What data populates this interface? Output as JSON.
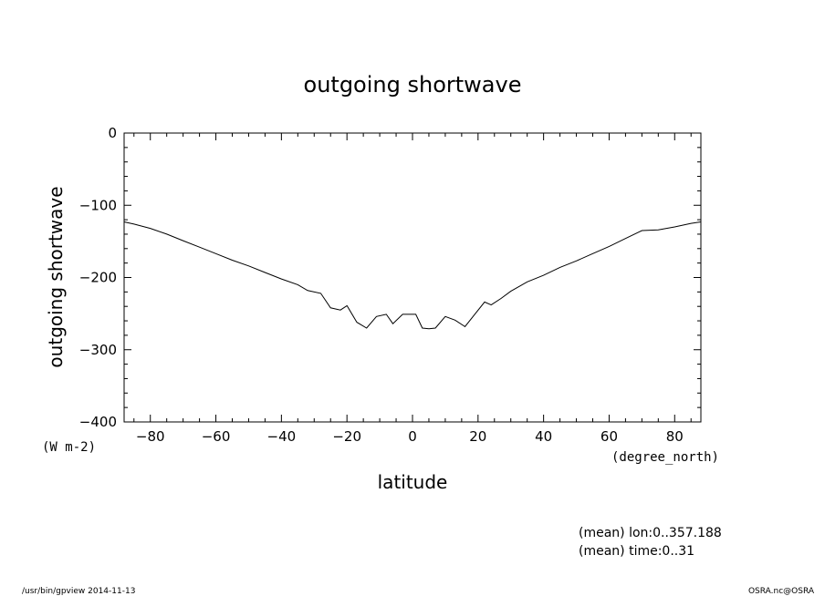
{
  "chart_data": {
    "type": "line",
    "title": "outgoing shortwave",
    "xlabel": "latitude",
    "ylabel": "outgoing shortwave",
    "x_unit": "(degree_north)",
    "y_unit": "(W m-2)",
    "xlim": [
      -88,
      88
    ],
    "ylim": [
      -400,
      0
    ],
    "x_ticks": [
      -80,
      -60,
      -40,
      -20,
      0,
      20,
      40,
      60,
      80
    ],
    "y_ticks": [
      0,
      -100,
      -200,
      -300,
      -400
    ],
    "x_tick_labels": [
      "−80",
      "−60",
      "−40",
      "−20",
      "0",
      "20",
      "40",
      "60",
      "80"
    ],
    "y_tick_labels": [
      "0",
      "−100",
      "−200",
      "−300",
      "−400"
    ],
    "grid": false,
    "series": [
      {
        "x": [
          -88,
          -85,
          -80,
          -75,
          -70,
          -65,
          -60,
          -55,
          -50,
          -45,
          -40,
          -35,
          -32,
          -28,
          -25,
          -22,
          -20,
          -17,
          -14,
          -11,
          -8,
          -6,
          -3,
          -1,
          1,
          3,
          5,
          7,
          10,
          13,
          16,
          19,
          22,
          24,
          27,
          30,
          35,
          40,
          45,
          50,
          55,
          60,
          65,
          70,
          75,
          80,
          85,
          88
        ],
        "y": [
          -123,
          -126,
          -132,
          -140,
          -149,
          -158,
          -167,
          -176,
          -184,
          -193,
          -202,
          -210,
          -218,
          -222,
          -242,
          -245,
          -239,
          -262,
          -270,
          -254,
          -251,
          -264,
          -251,
          -251,
          -251,
          -270,
          -271,
          -270,
          -254,
          -259,
          -268,
          -251,
          -234,
          -238,
          -229,
          -219,
          -206,
          -197,
          -186,
          -177,
          -167,
          -157,
          -146,
          -135,
          -134,
          -130,
          -125,
          -123
        ]
      }
    ]
  },
  "notes": {
    "line1": "(mean) lon:0..357.188",
    "line2": "(mean) time:0..31"
  },
  "footer": {
    "left": "/usr/bin/gpview  2014-11-13",
    "right": "OSRA.nc@OSRA"
  }
}
